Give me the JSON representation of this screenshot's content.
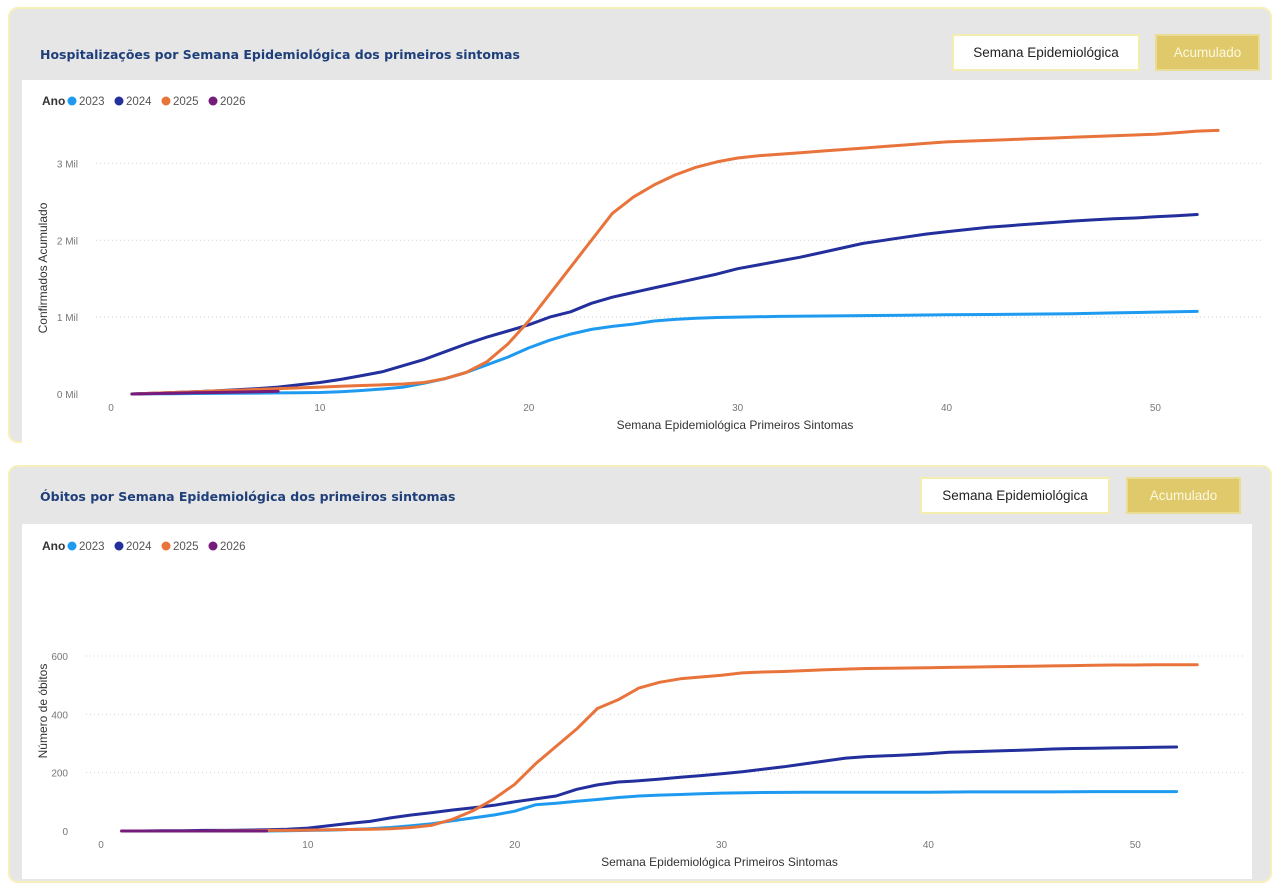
{
  "colors": {
    "2023": "#1e9bf0",
    "2024": "#232f9c",
    "2025": "#e8743b",
    "2026": "#741b7c"
  },
  "buttons": {
    "semana": "Semana Epidemiológica",
    "acumulado": "Acumulado"
  },
  "legend": {
    "title": "Ano",
    "entries": [
      "2023",
      "2024",
      "2025",
      "2026"
    ]
  },
  "chart_data": [
    {
      "type": "line",
      "title": "Hospitalizações por Semana Epidemiológica dos primeiros sintomas",
      "xlabel": "Semana Epidemiológica Primeiros Sintomas",
      "ylabel": "Confirmados Acumulado",
      "xlim": [
        0,
        54
      ],
      "ylim": [
        0,
        3500
      ],
      "xticks": [
        0,
        10,
        20,
        30,
        40,
        50
      ],
      "xtick_labels": [
        "0",
        "10",
        "20",
        "30",
        "40",
        "50"
      ],
      "yticks": [
        0,
        1000,
        2000,
        3000
      ],
      "ytick_labels": [
        "0 Mil",
        "1 Mil",
        "2 Mil",
        "3 Mil"
      ],
      "grid": "horizontal dotted",
      "legend_position": "top-left",
      "series": [
        {
          "name": "2023",
          "x": [
            1,
            2,
            3,
            4,
            5,
            6,
            7,
            8,
            9,
            10,
            11,
            12,
            13,
            14,
            15,
            16,
            17,
            18,
            19,
            20,
            21,
            22,
            23,
            24,
            25,
            26,
            27,
            28,
            29,
            30,
            32,
            34,
            36,
            38,
            40,
            42,
            44,
            46,
            48,
            50,
            52
          ],
          "y": [
            0,
            2,
            4,
            6,
            8,
            10,
            12,
            14,
            16,
            20,
            30,
            45,
            65,
            90,
            140,
            200,
            280,
            380,
            480,
            600,
            700,
            780,
            840,
            880,
            910,
            950,
            970,
            985,
            995,
            1000,
            1010,
            1015,
            1020,
            1025,
            1030,
            1035,
            1040,
            1045,
            1055,
            1065,
            1075
          ]
        },
        {
          "name": "2024",
          "x": [
            1,
            2,
            3,
            4,
            5,
            6,
            7,
            8,
            9,
            10,
            11,
            12,
            13,
            14,
            15,
            16,
            17,
            18,
            19,
            20,
            21,
            22,
            23,
            24,
            25,
            26,
            27,
            28,
            29,
            30,
            31,
            32,
            33,
            34,
            35,
            36,
            37,
            38,
            39,
            40,
            41,
            42,
            43,
            44,
            45,
            46,
            47,
            48,
            49,
            50,
            51,
            52
          ],
          "y": [
            0,
            10,
            20,
            30,
            40,
            55,
            70,
            90,
            120,
            150,
            190,
            240,
            290,
            370,
            450,
            550,
            650,
            740,
            820,
            900,
            1000,
            1070,
            1180,
            1260,
            1320,
            1380,
            1440,
            1500,
            1560,
            1630,
            1680,
            1730,
            1780,
            1840,
            1900,
            1960,
            2000,
            2040,
            2080,
            2110,
            2140,
            2170,
            2190,
            2210,
            2230,
            2250,
            2265,
            2280,
            2290,
            2305,
            2320,
            2335
          ]
        },
        {
          "name": "2025",
          "x": [
            1,
            2,
            3,
            4,
            5,
            6,
            7,
            8,
            9,
            10,
            11,
            12,
            13,
            14,
            15,
            16,
            17,
            18,
            19,
            20,
            21,
            22,
            23,
            24,
            25,
            26,
            27,
            28,
            29,
            30,
            31,
            32,
            33,
            34,
            35,
            36,
            37,
            38,
            39,
            40,
            41,
            42,
            43,
            44,
            45,
            46,
            47,
            48,
            49,
            50,
            51,
            52,
            53
          ],
          "y": [
            0,
            10,
            20,
            30,
            40,
            50,
            60,
            70,
            80,
            90,
            100,
            110,
            120,
            130,
            150,
            200,
            280,
            420,
            650,
            950,
            1300,
            1650,
            2000,
            2350,
            2560,
            2720,
            2850,
            2950,
            3020,
            3070,
            3100,
            3120,
            3140,
            3160,
            3180,
            3200,
            3220,
            3240,
            3260,
            3280,
            3290,
            3300,
            3310,
            3320,
            3330,
            3340,
            3350,
            3360,
            3370,
            3380,
            3400,
            3420,
            3430
          ]
        },
        {
          "name": "2026",
          "x": [
            1,
            2,
            3,
            4,
            5,
            6,
            7,
            8
          ],
          "y": [
            0,
            5,
            10,
            15,
            20,
            25,
            30,
            35
          ]
        }
      ]
    },
    {
      "type": "line",
      "title": "Óbitos por Semana Epidemiológica dos primeiros sintomas",
      "xlabel": "Semana Epidemiológica Primeiros Sintomas",
      "ylabel": "Número de óbitos",
      "xlim": [
        0,
        54
      ],
      "ylim": [
        0,
        600
      ],
      "xticks": [
        0,
        10,
        20,
        30,
        40,
        50
      ],
      "xtick_labels": [
        "0",
        "10",
        "20",
        "30",
        "40",
        "50"
      ],
      "yticks": [
        0,
        200,
        400,
        600
      ],
      "ytick_labels": [
        "0",
        "200",
        "400",
        "600"
      ],
      "grid": "horizontal dotted",
      "legend_position": "top-left",
      "series": [
        {
          "name": "2023",
          "x": [
            1,
            2,
            3,
            4,
            5,
            6,
            7,
            8,
            9,
            10,
            11,
            12,
            13,
            14,
            15,
            16,
            17,
            18,
            19,
            20,
            21,
            22,
            23,
            24,
            25,
            26,
            27,
            28,
            29,
            30,
            32,
            34,
            36,
            38,
            40,
            42,
            44,
            46,
            48,
            50,
            52
          ],
          "y": [
            0,
            0,
            0,
            0,
            0,
            0,
            0,
            0,
            1,
            2,
            3,
            5,
            8,
            12,
            18,
            25,
            35,
            45,
            55,
            68,
            90,
            95,
            102,
            108,
            115,
            120,
            123,
            125,
            128,
            130,
            132,
            133,
            133,
            133,
            133,
            134,
            134,
            134,
            135,
            135,
            135
          ]
        },
        {
          "name": "2024",
          "x": [
            1,
            2,
            3,
            4,
            5,
            6,
            7,
            8,
            9,
            10,
            11,
            12,
            13,
            14,
            15,
            16,
            17,
            18,
            19,
            20,
            21,
            22,
            23,
            24,
            25,
            26,
            27,
            28,
            29,
            30,
            31,
            32,
            33,
            34,
            35,
            36,
            37,
            38,
            39,
            40,
            41,
            42,
            43,
            44,
            45,
            46,
            47,
            48,
            49,
            50,
            51,
            52
          ],
          "y": [
            0,
            0,
            1,
            1,
            2,
            2,
            3,
            4,
            6,
            10,
            18,
            26,
            33,
            45,
            55,
            63,
            72,
            80,
            88,
            100,
            110,
            120,
            143,
            158,
            168,
            172,
            178,
            184,
            190,
            196,
            203,
            212,
            220,
            230,
            240,
            250,
            255,
            258,
            261,
            265,
            270,
            272,
            274,
            276,
            278,
            281,
            283,
            284,
            285,
            286,
            287,
            288
          ]
        },
        {
          "name": "2025",
          "x": [
            1,
            2,
            3,
            4,
            5,
            6,
            7,
            8,
            9,
            10,
            11,
            12,
            13,
            14,
            15,
            16,
            17,
            18,
            19,
            20,
            21,
            22,
            23,
            24,
            25,
            26,
            27,
            28,
            29,
            30,
            31,
            32,
            33,
            34,
            35,
            36,
            37,
            38,
            39,
            40,
            41,
            42,
            43,
            44,
            45,
            46,
            47,
            48,
            49,
            50,
            51,
            52,
            53
          ],
          "y": [
            0,
            0,
            0,
            0,
            0,
            1,
            1,
            2,
            2,
            3,
            4,
            5,
            6,
            8,
            12,
            20,
            40,
            70,
            110,
            160,
            230,
            290,
            350,
            420,
            450,
            490,
            510,
            522,
            528,
            534,
            542,
            545,
            547,
            550,
            553,
            555,
            557,
            558,
            559,
            560,
            561,
            562,
            563,
            564,
            565,
            566,
            567,
            568,
            569,
            569,
            570,
            570,
            570
          ]
        },
        {
          "name": "2026",
          "x": [
            1,
            2,
            3,
            4,
            5,
            6,
            7,
            8
          ],
          "y": [
            0,
            0,
            0,
            0,
            0,
            0,
            0,
            0
          ]
        }
      ]
    }
  ]
}
